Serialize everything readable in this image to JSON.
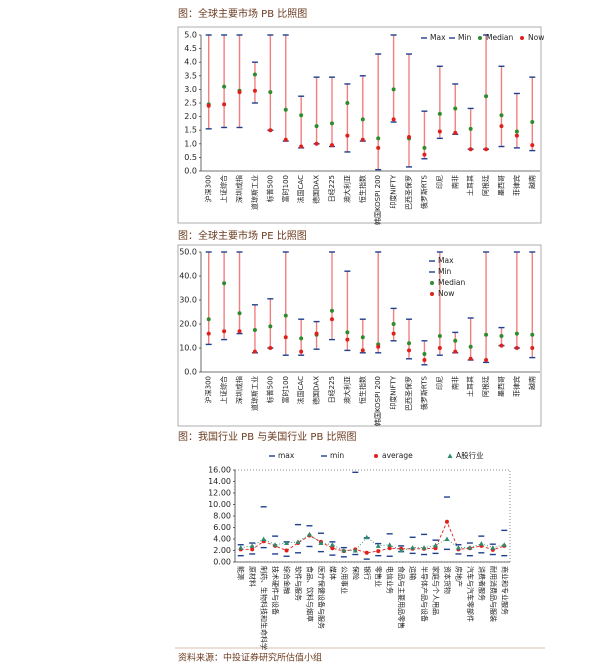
{
  "chart_data": [
    {
      "type": "range",
      "title": "图：全球主要市场 PB 比照图",
      "legend": "upper right",
      "range_color": "#f08080",
      "categories": [
        "沪深300",
        "上证综合",
        "深圳成指",
        "道琼斯工业",
        "标普500",
        "富时100",
        "法国CAC",
        "德国DAX",
        "日经225",
        "澳大利亚",
        "恒生指数",
        "韩国KOSPI 200",
        "印度NIFTY",
        "巴西圣保罗",
        "俄罗斯RTS",
        "印尼",
        "南非",
        "土耳其",
        "阿根廷",
        "墨西哥",
        "菲律宾",
        "越南"
      ],
      "ylim": [
        0,
        5
      ],
      "yticks": [
        {
          "value": 0,
          "label": "0.0"
        },
        {
          "value": 0.5,
          "label": "0.5"
        },
        {
          "value": 1,
          "label": "1.0"
        },
        {
          "value": 1.5,
          "label": "1.5"
        },
        {
          "value": 2,
          "label": "2.0"
        },
        {
          "value": 2.5,
          "label": "2.5"
        },
        {
          "value": 3,
          "label": "3.0"
        },
        {
          "value": 3.5,
          "label": "3.5"
        },
        {
          "value": 4,
          "label": "4.0"
        },
        {
          "value": 4.5,
          "label": "4.5"
        },
        {
          "value": 5,
          "label": "5.0"
        }
      ],
      "series": [
        {
          "name": "Max",
          "color": "#1f3f8f",
          "marker": "dash",
          "values": [
            5.0,
            5.0,
            5.0,
            4.0,
            5.0,
            5.0,
            2.75,
            3.45,
            3.45,
            3.2,
            3.5,
            4.3,
            5.0,
            4.3,
            2.2,
            3.85,
            3.2,
            2.3,
            5.0,
            3.85,
            2.85,
            3.45
          ]
        },
        {
          "name": "Min",
          "color": "#1f3f8f",
          "marker": "dash",
          "values": [
            1.55,
            1.6,
            1.6,
            2.5,
            1.5,
            1.1,
            0.85,
            1.0,
            0.9,
            0.7,
            1.1,
            0.05,
            1.8,
            0.15,
            0.45,
            1.2,
            1.35,
            0.8,
            0.8,
            0.9,
            0.85,
            0.75
          ]
        },
        {
          "name": "Median",
          "color": "#2e8b2e",
          "marker": "dot",
          "values": [
            2.45,
            3.1,
            2.95,
            3.55,
            2.9,
            2.25,
            2.05,
            1.65,
            1.75,
            2.5,
            1.9,
            1.2,
            3.0,
            1.2,
            0.85,
            2.1,
            2.3,
            1.55,
            2.75,
            2.05,
            1.45,
            1.8
          ]
        },
        {
          "name": "Now",
          "color": "#e0201b",
          "marker": "dot",
          "values": [
            2.4,
            2.45,
            2.9,
            2.95,
            1.5,
            1.15,
            0.9,
            1.0,
            0.95,
            1.3,
            1.15,
            0.85,
            1.9,
            1.25,
            0.6,
            1.45,
            1.4,
            0.8,
            0.8,
            1.65,
            1.3,
            0.95
          ]
        }
      ]
    },
    {
      "type": "range",
      "title": "图：全球主要市场 PE 比照图",
      "legend": "right",
      "range_color": "#f08080",
      "categories": [
        "沪深300",
        "上证综合",
        "深圳成指",
        "道琼斯工业",
        "标普500",
        "富时100",
        "法国CAC",
        "德国DAX",
        "日经225",
        "澳大利亚",
        "恒生指数",
        "韩国KOSPI 200",
        "印度NIFTY",
        "巴西圣保罗",
        "俄罗斯RTS",
        "印尼",
        "南非",
        "土耳其",
        "阿根廷",
        "墨西哥",
        "菲律宾",
        "越南"
      ],
      "ylim": [
        0,
        50
      ],
      "yticks": [
        {
          "value": 0,
          "label": "0.0"
        },
        {
          "value": 10,
          "label": "10.0"
        },
        {
          "value": 20,
          "label": "20.0"
        },
        {
          "value": 30,
          "label": "30.0"
        },
        {
          "value": 40,
          "label": "40.0"
        },
        {
          "value": 50,
          "label": "50.0"
        }
      ],
      "series": [
        {
          "name": "Max",
          "color": "#1f3f8f",
          "marker": "dash",
          "values": [
            50,
            50,
            50,
            28,
            30.5,
            50,
            22,
            21,
            50,
            42,
            22,
            50,
            26.5,
            22,
            13,
            50,
            16.5,
            22.5,
            50,
            18.5,
            50,
            50
          ]
        },
        {
          "name": "Min",
          "color": "#1f3f8f",
          "marker": "dash",
          "values": [
            11.5,
            13.5,
            16,
            8,
            10,
            7,
            7,
            9.5,
            13.5,
            9,
            8,
            8,
            13,
            5.5,
            3,
            7,
            8,
            5,
            4,
            11,
            10,
            6
          ]
        },
        {
          "name": "Median",
          "color": "#2e8b2e",
          "marker": "dot",
          "values": [
            22,
            37,
            24.5,
            17.5,
            19,
            23.5,
            14,
            15.5,
            25.5,
            16.5,
            14.5,
            11.5,
            20,
            12,
            7.5,
            15,
            13,
            10.5,
            15.5,
            15,
            16,
            15.5
          ]
        },
        {
          "name": "Now",
          "color": "#e0201b",
          "marker": "dot",
          "values": [
            16,
            17,
            17,
            8.5,
            10,
            14.5,
            8.5,
            16,
            22,
            13.5,
            9,
            10.5,
            16,
            9,
            5,
            10,
            8.5,
            5.5,
            5,
            11,
            10,
            10
          ]
        }
      ]
    },
    {
      "type": "line",
      "title": "图：我国行业 PB 与美国行业 PB 比照图",
      "legend": "top",
      "categories": [
        "能源",
        "原材料",
        "制药、生物科技和生命科学",
        "技术硬件与设备",
        "综合金融",
        "软件与服务",
        "食品、饮料与烟草",
        "医疗保健设备与服务",
        "媒体",
        "公用事业",
        "保险",
        "银行",
        "零售业",
        "电信业务",
        "食品与主要用品零售",
        "运输",
        "半导体产品与设备",
        "家庭与个人用品",
        "资本货物",
        "房地产",
        "汽车与汽车零部件",
        "消费者服务",
        "耐用消费品与服装",
        "商业和专业服务"
      ],
      "ylim": [
        0,
        16
      ],
      "yticks": [
        {
          "value": 0,
          "label": "0.00"
        },
        {
          "value": 2,
          "label": "2.00"
        },
        {
          "value": 4,
          "label": "4.00"
        },
        {
          "value": 6,
          "label": "6.00"
        },
        {
          "value": 8,
          "label": "8.00"
        },
        {
          "value": 10,
          "label": "10.00"
        },
        {
          "value": 12,
          "label": "12.00"
        },
        {
          "value": 14,
          "label": "14.00"
        },
        {
          "value": 16,
          "label": "16.00"
        }
      ],
      "series": [
        {
          "name": "max",
          "color": "#1f3f8f",
          "marker": "dash",
          "linestyle": "none",
          "values": [
            3.0,
            3.3,
            9.6,
            4.5,
            3.5,
            6.5,
            6.3,
            5.0,
            3.5,
            2.5,
            15.6,
            4.2,
            3.2,
            4.9,
            2.8,
            4.3,
            4.8,
            3.8,
            11.3,
            3.0,
            3.3,
            4.5,
            3.1,
            5.5
          ]
        },
        {
          "name": "min",
          "color": "#1f3f8f",
          "marker": "dash",
          "linestyle": "none",
          "values": [
            1.1,
            1.4,
            2.5,
            1.4,
            1.0,
            1.6,
            2.7,
            1.8,
            1.2,
            0.9,
            1.3,
            0.5,
            1.1,
            1.0,
            1.8,
            1.5,
            1.3,
            1.5,
            2.2,
            1.4,
            1.1,
            1.6,
            1.3,
            1.1
          ]
        },
        {
          "name": "average",
          "color": "#e0201b",
          "marker": "dot",
          "linestyle": "dashed",
          "values": [
            2.2,
            2.2,
            3.6,
            2.8,
            2.0,
            3.3,
            4.6,
            3.5,
            2.4,
            1.9,
            2.2,
            1.6,
            1.9,
            2.4,
            2.3,
            2.3,
            2.3,
            2.4,
            7.0,
            2.2,
            2.4,
            2.8,
            2.1,
            2.8
          ]
        },
        {
          "name": "A股行业",
          "color": "#2e8b6e",
          "marker": "triangle",
          "linestyle": "dotted",
          "values": [
            2.5,
            2.8,
            4.0,
            3.0,
            3.3,
            3.5,
            4.8,
            3.3,
            3.0,
            2.0,
            2.0,
            4.3,
            2.8,
            3.0,
            2.0,
            2.5,
            2.5,
            2.9,
            4.0,
            2.5,
            2.5,
            3.2,
            2.5,
            3.0
          ]
        }
      ]
    }
  ],
  "footer": "资料来源：中投证券研究所估值小组"
}
